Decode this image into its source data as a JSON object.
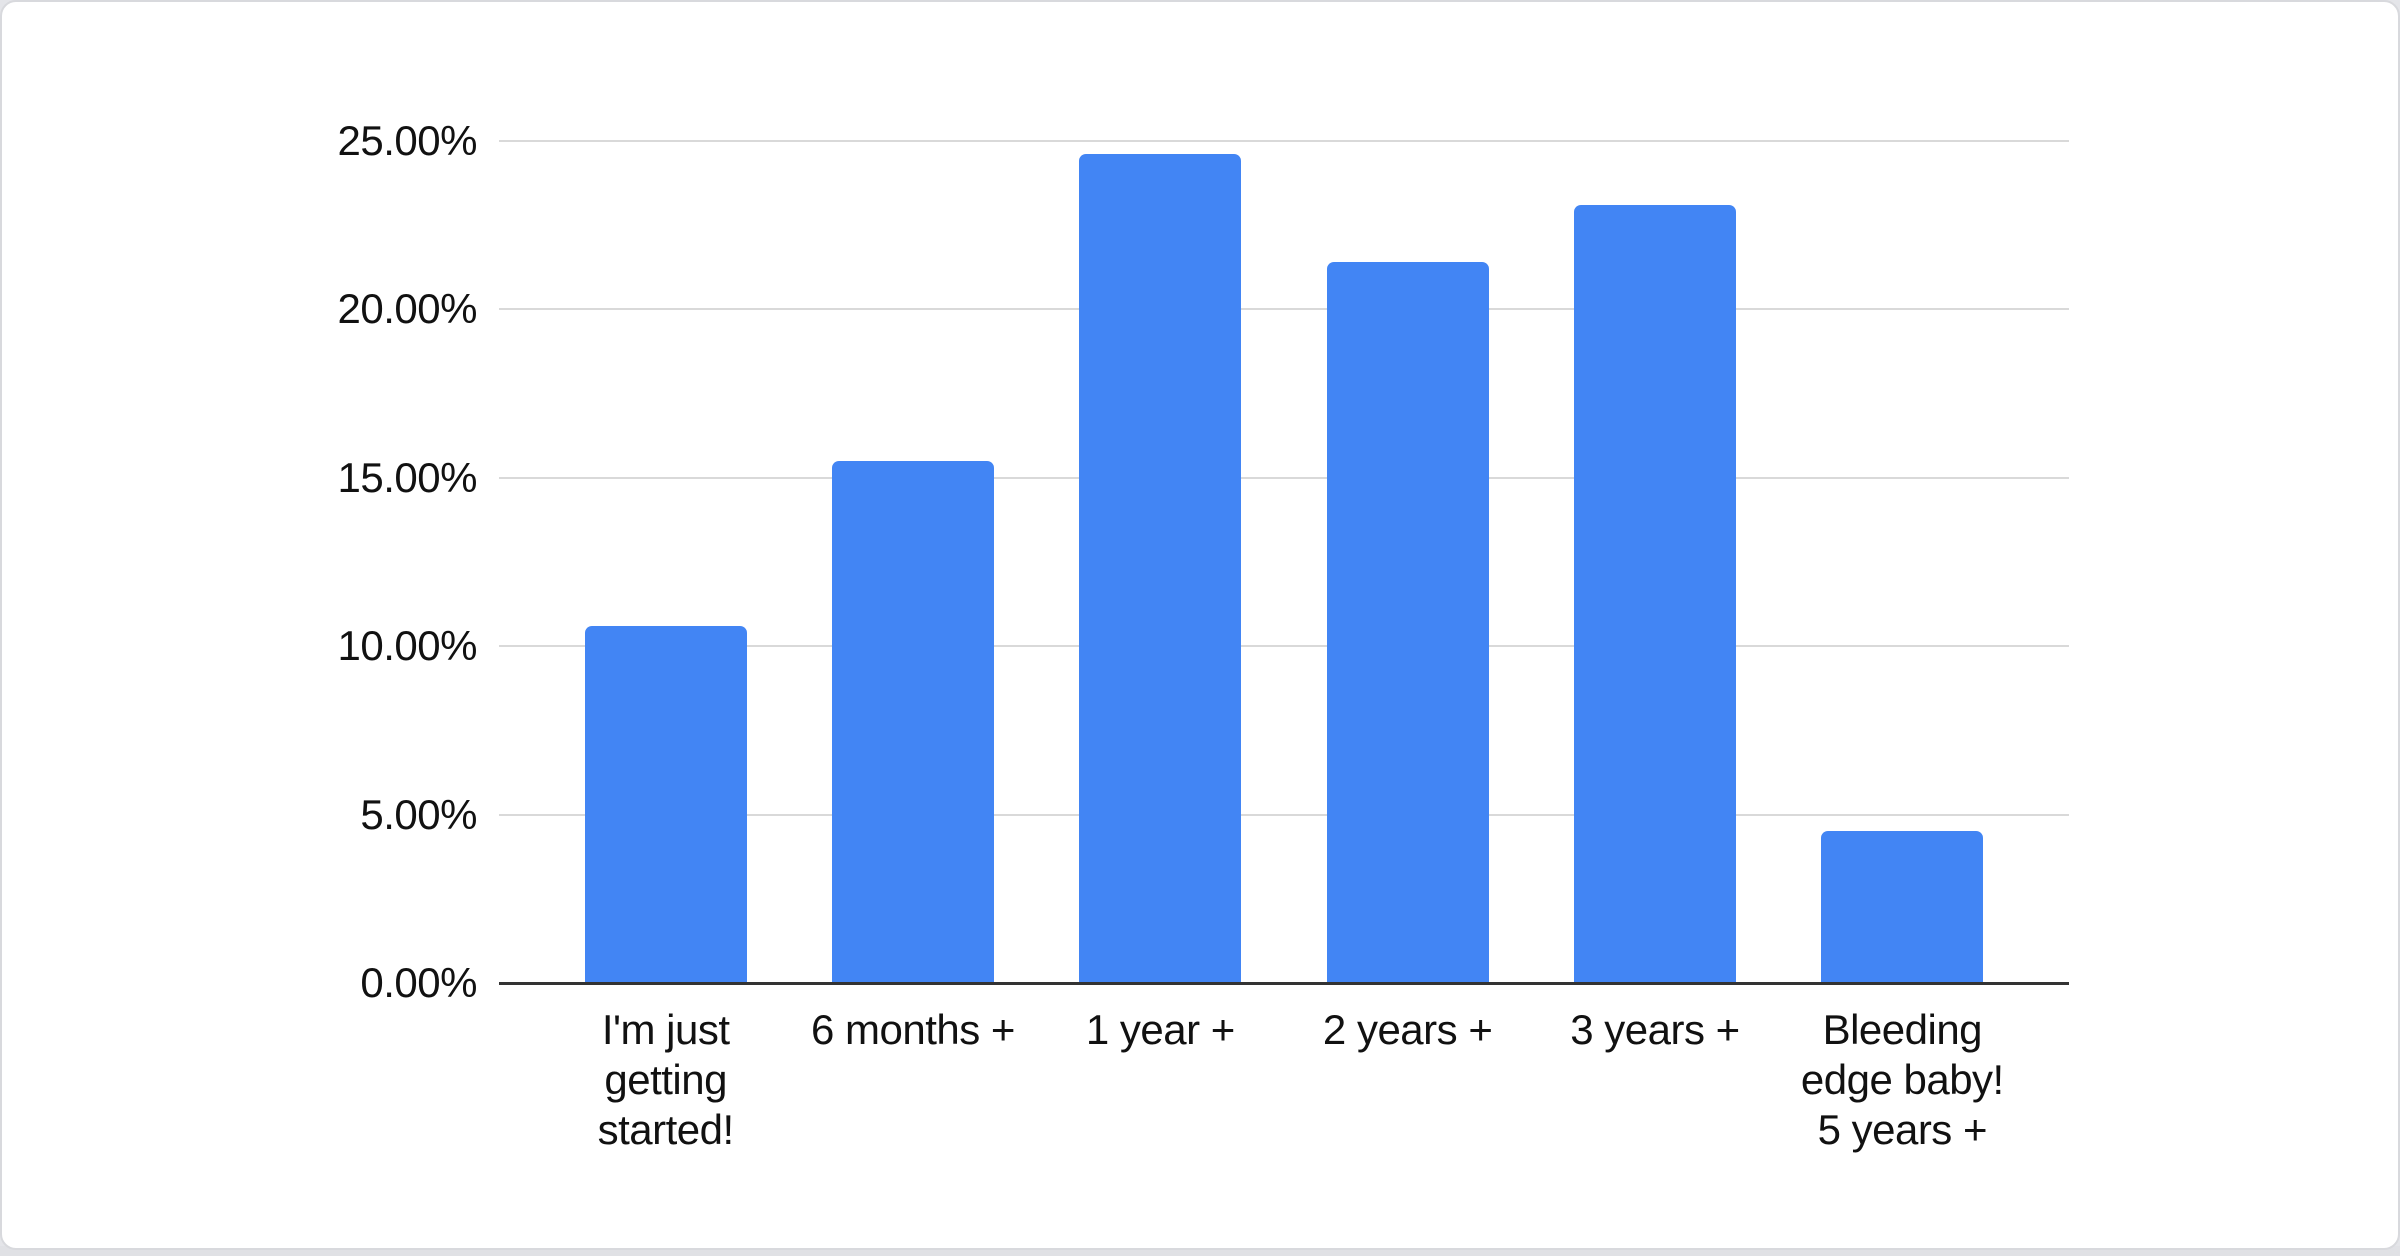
{
  "chart_data": {
    "type": "bar",
    "title": "",
    "xlabel": "",
    "ylabel": "",
    "categories": [
      "I'm just getting started!",
      "6 months +",
      "1 year +",
      "2 years +",
      "3 years +",
      "Bleeding edge baby! 5 years +"
    ],
    "categories_display": [
      "I'm just\ngetting\nstarted!",
      "6 months +",
      "1 year +",
      "2 years +",
      "3 years +",
      "Bleeding\nedge baby!\n5 years +"
    ],
    "values": [
      10.6,
      15.5,
      24.6,
      21.4,
      23.1,
      4.5
    ],
    "value_unit": "%",
    "ylim": [
      0,
      25
    ],
    "ytick_step": 5,
    "ytick_labels": [
      "25.00%",
      "20.00%",
      "15.00%",
      "10.00%",
      "5.00%",
      "0.00%"
    ],
    "grid": true,
    "legend_position": "none",
    "colors": {
      "bar": "#4285F4",
      "gridline": "#d9d9d9",
      "axis_line": "#333333",
      "label_text": "#111111",
      "card_background": "#ffffff",
      "card_border": "#d8d9dd",
      "page_strip": "#e0e1e5"
    }
  }
}
